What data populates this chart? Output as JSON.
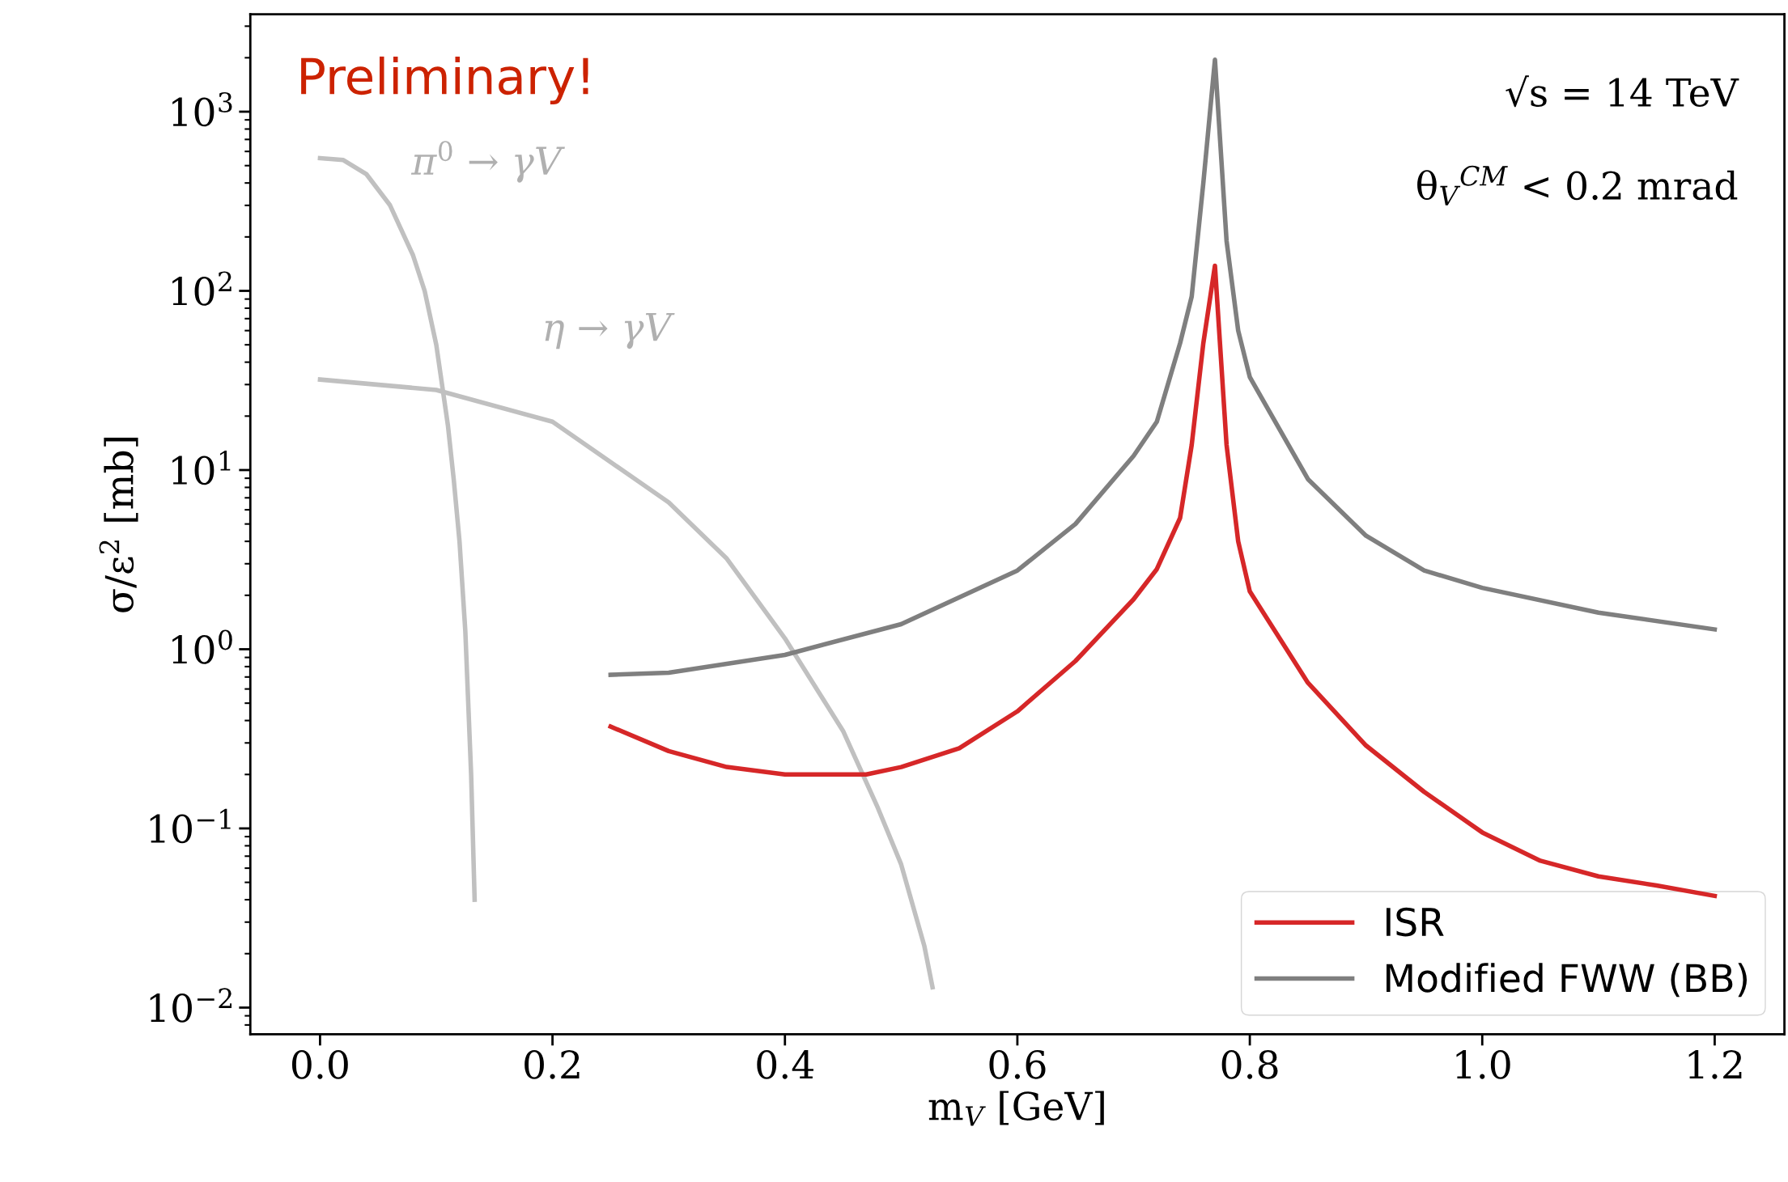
{
  "chart_data": {
    "type": "line",
    "xlabel": "m$_{V}$ [GeV]",
    "ylabel": "σ/ε$^{2}$ [mb]",
    "log": "y",
    "xlim": [
      -0.06,
      1.26
    ],
    "ylim": [
      0.0071,
      3500
    ],
    "xticks": [
      {
        "value": 0,
        "label": "0.0"
      },
      0.2,
      0.4,
      0.6,
      0.8,
      {
        "value": 1,
        "label": "1.0"
      },
      1.2
    ],
    "yticks": [
      {
        "value": 0.01,
        "label": "10$^{−2}$"
      },
      {
        "value": 0.1,
        "label": "10$^{−1}$"
      },
      {
        "value": 1,
        "label": "10$^{0}$"
      },
      {
        "value": 10,
        "label": "10$^{1}$"
      },
      {
        "value": 100,
        "label": "10$^{2}$"
      },
      {
        "value": 1000,
        "label": "10$^{3}$"
      }
    ],
    "grid": false,
    "legend": "lower right",
    "line_style": "solid",
    "marker": "none",
    "series": [
      {
        "color": "#c0c0c0",
        "x": [
          0,
          0.02,
          0.04,
          0.06,
          0.08,
          0.09,
          0.1,
          0.11,
          0.115,
          0.12,
          0.125,
          0.13,
          0.133
        ],
        "values": [
          550,
          537,
          447,
          302,
          158,
          100,
          50,
          17.8,
          8.9,
          4.0,
          1.26,
          0.2,
          0.04
        ]
      },
      {
        "color": "#c0c0c0",
        "x": [
          0,
          0.1,
          0.2,
          0.3,
          0.35,
          0.4,
          0.45,
          0.48,
          0.5,
          0.52,
          0.527
        ],
        "values": [
          32,
          28,
          18.6,
          6.6,
          3.2,
          1.15,
          0.35,
          0.13,
          0.063,
          0.022,
          0.013
        ]
      },
      {
        "name": "ISR",
        "color": "#d62728",
        "x": [
          0.25,
          0.3,
          0.35,
          0.4,
          0.47,
          0.5,
          0.55,
          0.6,
          0.65,
          0.7,
          0.72,
          0.74,
          0.75,
          0.76,
          0.77,
          0.78,
          0.79,
          0.8,
          0.85,
          0.9,
          0.95,
          1.0,
          1.05,
          1.1,
          1.15,
          1.2
        ],
        "values": [
          0.37,
          0.27,
          0.22,
          0.2,
          0.2,
          0.22,
          0.28,
          0.45,
          0.86,
          1.9,
          2.8,
          5.4,
          13.8,
          51,
          138,
          13.8,
          4.0,
          2.1,
          0.65,
          0.29,
          0.16,
          0.095,
          0.066,
          0.054,
          0.048,
          0.042
        ]
      },
      {
        "name": "Modified FWW (BB)",
        "color": "#7f7f7f",
        "x": [
          0.25,
          0.3,
          0.4,
          0.5,
          0.6,
          0.65,
          0.7,
          0.72,
          0.74,
          0.75,
          0.76,
          0.77,
          0.78,
          0.79,
          0.8,
          0.85,
          0.9,
          0.95,
          1.0,
          1.1,
          1.2
        ],
        "values": [
          0.72,
          0.74,
          0.93,
          1.38,
          2.75,
          5.0,
          12,
          18.6,
          51,
          93,
          400,
          1950,
          190,
          60,
          33,
          8.9,
          4.3,
          2.75,
          2.2,
          1.6,
          1.29
        ]
      }
    ],
    "annotations": [
      "π$^{0}$ → γV",
      "η → γV",
      "Preliminary!",
      "√s = 14 TeV",
      "θ$_{V}$$^{CM}$ < 0.2 mrad"
    ]
  }
}
